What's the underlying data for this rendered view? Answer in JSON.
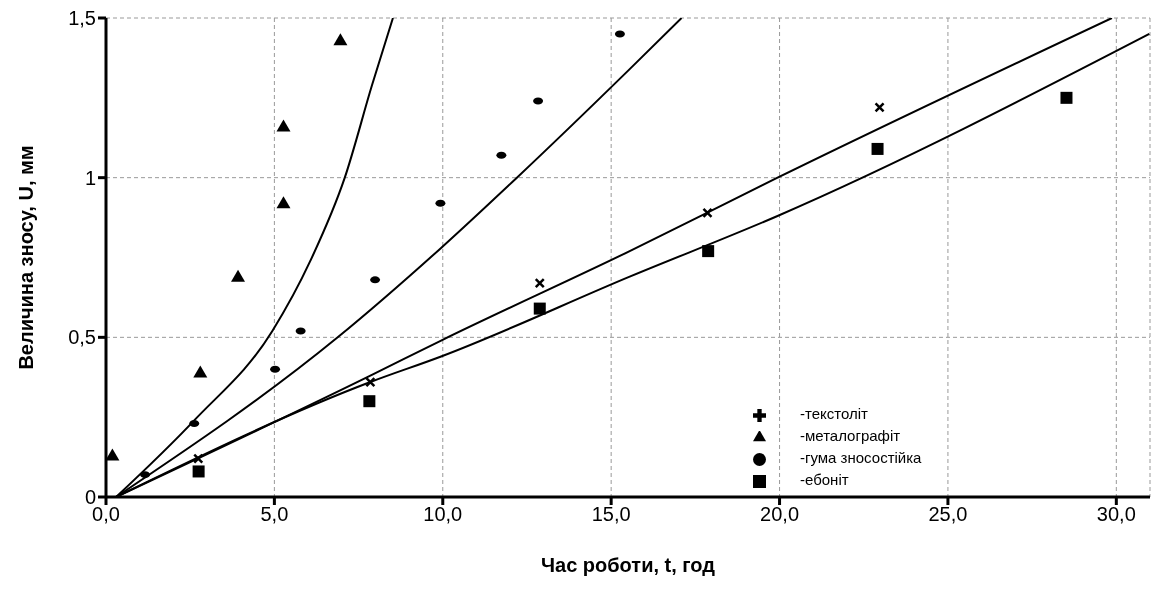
{
  "chart_data": {
    "type": "scatter",
    "xlabel": "Час роботи, t, год",
    "ylabel": "Величина зносу, U, мм",
    "xlim": [
      0,
      31
    ],
    "xticks": [
      {
        "value": 0,
        "label": "0,0"
      },
      {
        "value": 5,
        "label": "5,0"
      },
      {
        "value": 10,
        "label": "10,0"
      },
      {
        "value": 15,
        "label": "15,0"
      },
      {
        "value": 20,
        "label": "20,0"
      },
      {
        "value": 25,
        "label": "25,0"
      },
      {
        "value": 30,
        "label": "30,0"
      }
    ],
    "ylim": [
      0,
      1.5
    ],
    "yticks": [
      0,
      {
        "value": 0.5,
        "label": "0,5"
      },
      1,
      {
        "value": 1.5,
        "label": "1,5"
      }
    ],
    "grid": true,
    "legend": "bottom right",
    "series": [
      {
        "name": "-текстоліт",
        "marker": "cross",
        "color": "#000000",
        "x": [
          2.74,
          7.85,
          12.88,
          17.86,
          22.97
        ],
        "values": [
          0.12,
          0.36,
          0.67,
          0.89,
          1.22
        ]
      },
      {
        "name": "-металографіт",
        "marker": "triangle",
        "color": "#000000",
        "x": [
          0.19,
          2.8,
          3.92,
          5.27,
          5.27,
          6.96
        ],
        "values": [
          0.13,
          0.39,
          0.69,
          0.92,
          1.16,
          1.43
        ]
      },
      {
        "name": "-гума зносостійка",
        "marker": "circle",
        "color": "#000000",
        "x": [
          1.16,
          2.62,
          5.02,
          5.78,
          7.99,
          9.93,
          11.74,
          12.83,
          15.26
        ],
        "values": [
          0.07,
          0.23,
          0.4,
          0.52,
          0.68,
          0.92,
          1.07,
          1.24,
          1.45
        ]
      },
      {
        "name": "-ебоніт",
        "marker": "square",
        "color": "#000000",
        "x": [
          2.75,
          7.82,
          12.88,
          17.88,
          22.91,
          28.52
        ],
        "values": [
          0.08,
          0.3,
          0.59,
          0.77,
          1.09,
          1.25
        ]
      },
      {
        "type": "line",
        "marker": "none",
        "line_style": "solid",
        "color": "#000000",
        "x": [
          0.3,
          2.62,
          4.94,
          6.07,
          7.09,
          7.9,
          8.52
        ],
        "values": [
          0,
          0.24,
          0.52,
          0.74,
          1.0,
          1.29,
          1.5
        ]
      },
      {
        "type": "line",
        "marker": "none",
        "line_style": "solid",
        "color": "#000000",
        "x": [
          0.3,
          6.88,
          9.95,
          12.2,
          15.55,
          17.09
        ],
        "values": [
          0,
          0.5,
          0.78,
          1.0,
          1.34,
          1.5
        ]
      },
      {
        "type": "line",
        "marker": "none",
        "line_style": "solid",
        "color": "#000000",
        "x": [
          0.3,
          7.85,
          9.95,
          15.55,
          19.94,
          29.87
        ],
        "values": [
          0,
          0.38,
          0.49,
          0.77,
          1.0,
          1.5
        ]
      },
      {
        "type": "line",
        "marker": "none",
        "line_style": "solid",
        "color": "#000000",
        "x": [
          0.3,
          7.85,
          9.95,
          15.55,
          19.94,
          30.98
        ],
        "values": [
          0,
          0.36,
          0.44,
          0.69,
          0.88,
          1.45
        ]
      }
    ]
  }
}
